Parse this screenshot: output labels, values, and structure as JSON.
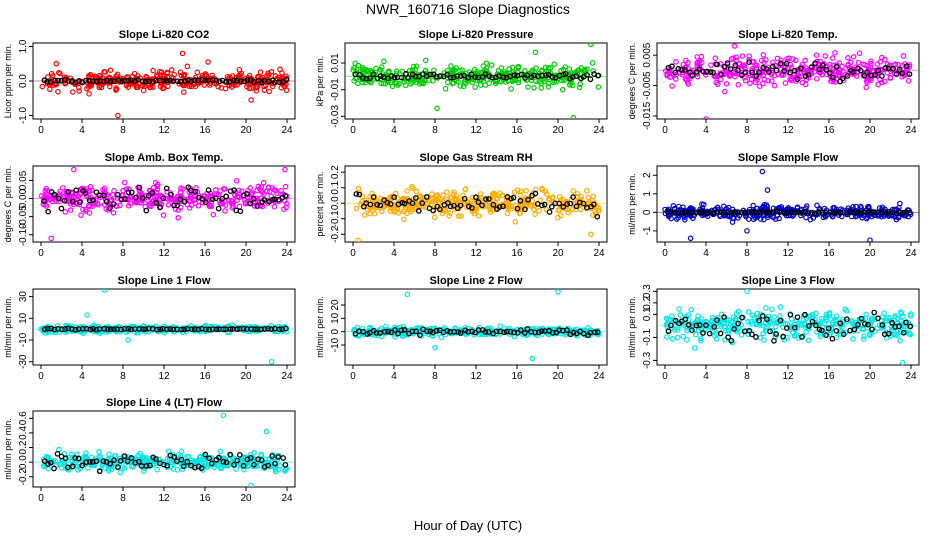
{
  "title": "NWR_160716  Slope Diagnostics",
  "xlabel": "Hour of Day (UTC)",
  "x_ticks": [
    "0",
    "4",
    "8",
    "12",
    "16",
    "20",
    "24"
  ],
  "chart_data": [
    {
      "type": "scatter",
      "title": "Slope Li-820 CO2",
      "ylabel": "Licor ppm per min.",
      "color": "#ff0000",
      "xlim": [
        0,
        24
      ],
      "ylim": [
        -1.1,
        1.1
      ],
      "y_ticks": [
        "-1.0",
        "0.0",
        "1.0"
      ],
      "y_tick_values": [
        -1,
        0,
        1
      ],
      "spread": 0.28,
      "highlight_spread": 0.04,
      "seed": 11,
      "outliers": [
        {
          "x": 1.5,
          "y": 0.5
        },
        {
          "x": 13.8,
          "y": 0.8
        },
        {
          "x": 7.5,
          "y": -1.0
        },
        {
          "x": 16.3,
          "y": 0.55
        },
        {
          "x": 20.5,
          "y": -0.55
        }
      ]
    },
    {
      "type": "scatter",
      "title": "Slope Li-820 Pressure",
      "ylabel": "kPa per min.",
      "color": "#00cc00",
      "xlim": [
        0,
        24
      ],
      "ylim": [
        -0.032,
        0.025
      ],
      "y_ticks": [
        "-0.03",
        "-0.01",
        "0.01"
      ],
      "y_tick_values": [
        -0.03,
        -0.01,
        0.01
      ],
      "spread": 0.008,
      "highlight_spread": 0.002,
      "seed": 23,
      "outliers": [
        {
          "x": 8.2,
          "y": -0.024
        },
        {
          "x": 21.5,
          "y": -0.031
        },
        {
          "x": 23.2,
          "y": 0.024
        },
        {
          "x": 17.8,
          "y": 0.018
        }
      ]
    },
    {
      "type": "scatter",
      "title": "Slope Li-820 Temp.",
      "ylabel": "degrees C per min.",
      "color": "#ff00ff",
      "xlim": [
        0,
        24
      ],
      "ylim": [
        -0.016,
        0.009
      ],
      "y_ticks": [
        "-0.015",
        "-0.005",
        "0.005"
      ],
      "y_tick_values": [
        -0.015,
        -0.005,
        0.005
      ],
      "spread": 0.0045,
      "highlight_spread": 0.003,
      "seed": 37,
      "outliers": [
        {
          "x": 4.0,
          "y": -0.016
        },
        {
          "x": 6.8,
          "y": 0.008
        }
      ]
    },
    {
      "type": "scatter",
      "title": "Slope Amb. Box Temp.",
      "ylabel": "degrees C per min.",
      "color": "#ff00ff",
      "xlim": [
        0,
        24
      ],
      "ylim": [
        -0.12,
        0.09
      ],
      "y_ticks": [
        "-0.10",
        "-0.05",
        "0.00",
        "0.05"
      ],
      "y_tick_values": [
        -0.1,
        -0.05,
        0,
        0.05
      ],
      "spread": 0.035,
      "highlight_spread": 0.03,
      "seed": 41,
      "outliers": [
        {
          "x": 1.0,
          "y": -0.11
        },
        {
          "x": 3.2,
          "y": 0.08
        },
        {
          "x": 23.8,
          "y": 0.08
        }
      ]
    },
    {
      "type": "scatter",
      "title": "Slope Gas Stream RH",
      "ylabel": "percent per min.",
      "color": "#ffaa00",
      "xlim": [
        0,
        24
      ],
      "ylim": [
        -0.25,
        0.24
      ],
      "y_ticks": [
        "-0.2",
        "-0.1",
        "0.0",
        "0.1",
        "0.2"
      ],
      "y_tick_values": [
        -0.2,
        -0.1,
        0,
        0.1,
        0.2
      ],
      "spread": 0.08,
      "highlight_spread": 0.07,
      "seed": 53,
      "outliers": [
        {
          "x": 0.5,
          "y": -0.24
        },
        {
          "x": 23.2,
          "y": -0.2
        }
      ]
    },
    {
      "type": "scatter",
      "title": "Slope Sample Flow",
      "ylabel": "ml/min per min.",
      "color": "#0000cc",
      "xlim": [
        0,
        24
      ],
      "ylim": [
        -1.6,
        2.5
      ],
      "y_ticks": [
        "-1",
        "0",
        "1",
        "2"
      ],
      "y_tick_values": [
        -1,
        0,
        1,
        2
      ],
      "spread": 0.35,
      "highlight_spread": 0.05,
      "seed": 67,
      "outliers": [
        {
          "x": 9.5,
          "y": 2.2
        },
        {
          "x": 2.5,
          "y": -1.4
        },
        {
          "x": 8.0,
          "y": -1.0
        },
        {
          "x": 20.0,
          "y": -1.5
        },
        {
          "x": 10.0,
          "y": 1.2
        }
      ]
    },
    {
      "type": "scatter",
      "title": "Slope Line 1 Flow",
      "ylabel": "ml/min per min.",
      "color": "#00e5e5",
      "xlim": [
        0,
        24
      ],
      "ylim": [
        -33,
        37
      ],
      "y_ticks": [
        "-30",
        "-10",
        "10",
        "30"
      ],
      "y_tick_values": [
        -30,
        -10,
        10,
        30
      ],
      "spread": 3,
      "highlight_spread": 0.5,
      "seed": 71,
      "outliers": [
        {
          "x": 6.2,
          "y": 36
        },
        {
          "x": 22.5,
          "y": -30
        },
        {
          "x": 4.5,
          "y": 13
        },
        {
          "x": 8.5,
          "y": -10
        }
      ]
    },
    {
      "type": "scatter",
      "title": "Slope Line 2 Flow",
      "ylabel": "ml/min per min.",
      "color": "#00e5e5",
      "xlim": [
        0,
        24
      ],
      "ylim": [
        -25,
        32
      ],
      "y_ticks": [
        "-10",
        "0",
        "10",
        "20"
      ],
      "y_tick_values": [
        -10,
        0,
        10,
        20
      ],
      "spread": 3,
      "highlight_spread": 2,
      "seed": 83,
      "outliers": [
        {
          "x": 5.3,
          "y": 28
        },
        {
          "x": 20.0,
          "y": 30
        },
        {
          "x": 8.0,
          "y": -12
        },
        {
          "x": 17.5,
          "y": -20
        }
      ]
    },
    {
      "type": "scatter",
      "title": "Slope Line 3 Flow",
      "ylabel": "ml/min per min.",
      "color": "#00e5e5",
      "xlim": [
        0,
        24
      ],
      "ylim": [
        -0.34,
        0.32
      ],
      "y_ticks": [
        "-0.3",
        "-0.1",
        "0.1",
        "0.2",
        "0.3"
      ],
      "y_tick_values": [
        -0.3,
        -0.1,
        0.1,
        0.2,
        0.3
      ],
      "spread": 0.12,
      "highlight_spread": 0.12,
      "seed": 97,
      "outliers": [
        {
          "x": 8.0,
          "y": 0.3
        },
        {
          "x": 23.2,
          "y": -0.32
        }
      ]
    },
    {
      "type": "scatter",
      "title": "Slope Line 4 (LT) Flow",
      "ylabel": "ml/min per min.",
      "color": "#00e5e5",
      "xlim": [
        0,
        24
      ],
      "ylim": [
        -0.34,
        0.7
      ],
      "y_ticks": [
        "-0.2",
        "0.0",
        "0.2",
        "0.4",
        "0.6"
      ],
      "y_tick_values": [
        -0.2,
        0,
        0.2,
        0.4,
        0.6
      ],
      "spread": 0.11,
      "highlight_spread": 0.1,
      "seed": 103,
      "outliers": [
        {
          "x": 17.8,
          "y": 0.64
        },
        {
          "x": 22.0,
          "y": 0.42
        },
        {
          "x": 20.5,
          "y": -0.32
        }
      ]
    }
  ]
}
